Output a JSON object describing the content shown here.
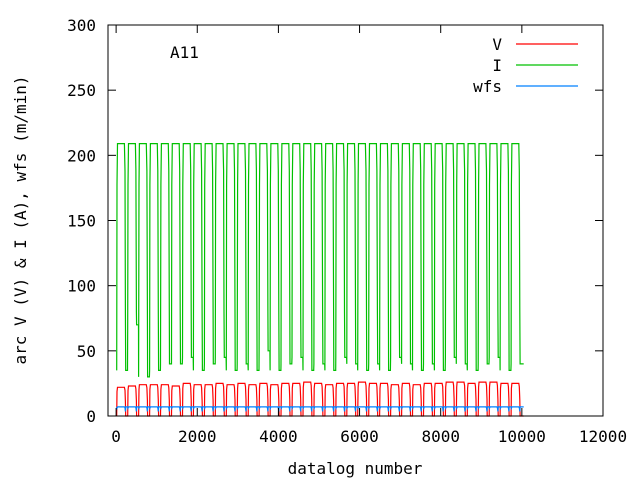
{
  "chart_data": {
    "type": "line",
    "title": "A11",
    "xlabel": "datalog number",
    "ylabel": "arc V (V) & I (A), wfs (m/min)",
    "xlim": [
      -200,
      12000
    ],
    "ylim": [
      0,
      300
    ],
    "xticks": [
      "0",
      "2000",
      "4000",
      "6000",
      "8000",
      "10000",
      "12000"
    ],
    "xtick_values": [
      0,
      2000,
      4000,
      6000,
      8000,
      10000,
      12000
    ],
    "yticks": [
      "0",
      "50",
      "100",
      "150",
      "200",
      "250",
      "300"
    ],
    "ytick_values": [
      0,
      50,
      100,
      150,
      200,
      250,
      300
    ],
    "grid": false,
    "legend_position": "top-right",
    "series": [
      {
        "name": "V",
        "color": "#ff0000",
        "on_level": 24,
        "off_level": 0
      },
      {
        "name": "I",
        "color": "#00c000",
        "on_level": 209,
        "off_level": 40
      },
      {
        "name": "wfs",
        "color": "#0080ff",
        "on_level": 7,
        "off_level": 7
      }
    ],
    "arc_on_start": [
      15,
      285,
      555,
      825,
      1095,
      1365,
      1635,
      1905,
      2175,
      2445,
      2715,
      2985,
      3255,
      3525,
      3795,
      4065,
      4335,
      4605,
      4875,
      5145,
      5415,
      5685,
      5955,
      6225,
      6495,
      6765,
      7035,
      7305,
      7575,
      7845,
      8115,
      8385,
      8655,
      8925,
      9195,
      9465,
      9735
    ],
    "arc_on_duration": 215,
    "I_off_min": [
      35,
      70,
      30,
      35,
      40,
      40,
      45,
      35,
      40,
      45,
      35,
      40,
      35,
      50,
      35,
      40,
      45,
      35,
      40,
      35,
      45,
      40,
      35,
      40,
      35,
      45,
      40,
      35,
      40,
      35,
      45,
      40,
      35,
      40,
      45,
      35,
      40
    ],
    "V_on_levels": [
      22,
      23,
      24,
      24,
      24,
      23,
      25,
      24,
      24,
      25,
      24,
      25,
      24,
      25,
      24,
      25,
      25,
      26,
      25,
      24,
      25,
      25,
      26,
      25,
      25,
      24,
      25,
      24,
      25,
      25,
      26,
      26,
      25,
      26,
      26,
      25,
      25
    ],
    "data_end": 10050
  }
}
